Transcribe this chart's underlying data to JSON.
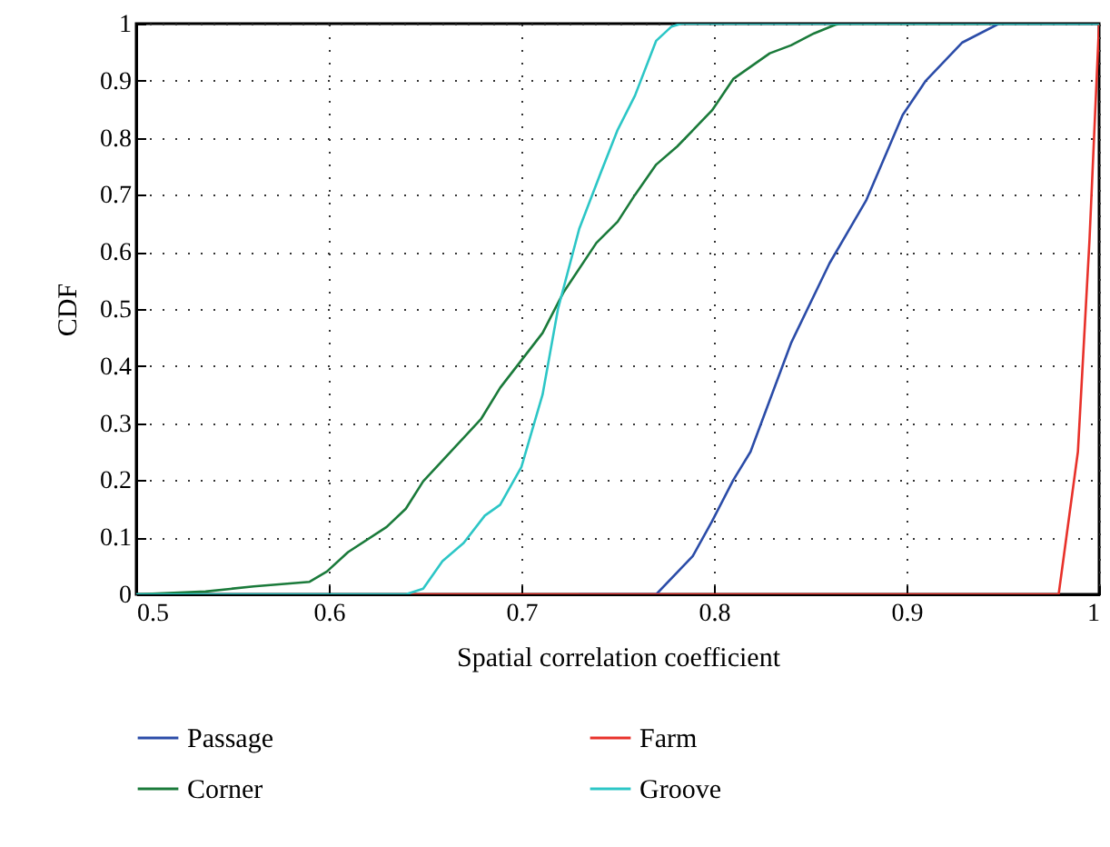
{
  "chart_data": {
    "type": "line",
    "xlabel": "Spatial correlation coefficient",
    "ylabel": "CDF",
    "xlim": [
      0.5,
      1
    ],
    "ylim": [
      0,
      1
    ],
    "xticks": [
      0.5,
      0.6,
      0.7,
      0.8,
      0.9,
      1
    ],
    "yticks": [
      0,
      0.1,
      0.2,
      0.3,
      0.4,
      0.5,
      0.6,
      0.7,
      0.8,
      0.9,
      1
    ],
    "grid": true,
    "legend": "bottom",
    "series": [
      {
        "name": "Passage",
        "color": "#2b4ca8",
        "x": [
          0.73,
          0.77,
          0.789,
          0.799,
          0.81,
          0.819,
          0.84,
          0.86,
          0.879,
          0.898,
          0.91,
          0.929,
          0.948,
          1
        ],
        "values": [
          0,
          0,
          0.067,
          0.128,
          0.2,
          0.25,
          0.44,
          0.58,
          0.69,
          0.84,
          0.9,
          0.967,
          1,
          1
        ]
      },
      {
        "name": "Farm",
        "color": "#e8312a",
        "x": [
          0.64,
          0.979,
          0.989,
          0.995,
          1
        ],
        "values": [
          0,
          0,
          0.25,
          0.62,
          1
        ]
      },
      {
        "name": "Corner",
        "color": "#1a7a3a",
        "x": [
          0.5,
          0.536,
          0.561,
          0.59,
          0.599,
          0.61,
          0.63,
          0.64,
          0.649,
          0.679,
          0.689,
          0.711,
          0.722,
          0.739,
          0.75,
          0.759,
          0.77,
          0.781,
          0.799,
          0.81,
          0.829,
          0.84,
          0.852,
          0.863,
          0.866,
          1
        ],
        "values": [
          0,
          0.005,
          0.014,
          0.022,
          0.04,
          0.074,
          0.118,
          0.15,
          0.198,
          0.307,
          0.362,
          0.458,
          0.53,
          0.616,
          0.653,
          0.7,
          0.753,
          0.785,
          0.848,
          0.903,
          0.948,
          0.962,
          0.983,
          0.998,
          1,
          1
        ]
      },
      {
        "name": "Groove",
        "color": "#2cc6c6",
        "x": [
          0.5,
          0.64,
          0.649,
          0.659,
          0.67,
          0.681,
          0.689,
          0.7,
          0.711,
          0.719,
          0.73,
          0.741,
          0.75,
          0.759,
          0.77,
          0.778,
          0.783,
          1
        ],
        "values": [
          0,
          0,
          0.01,
          0.058,
          0.09,
          0.138,
          0.157,
          0.223,
          0.35,
          0.5,
          0.64,
          0.737,
          0.814,
          0.874,
          0.97,
          0.995,
          1,
          1
        ]
      }
    ]
  }
}
